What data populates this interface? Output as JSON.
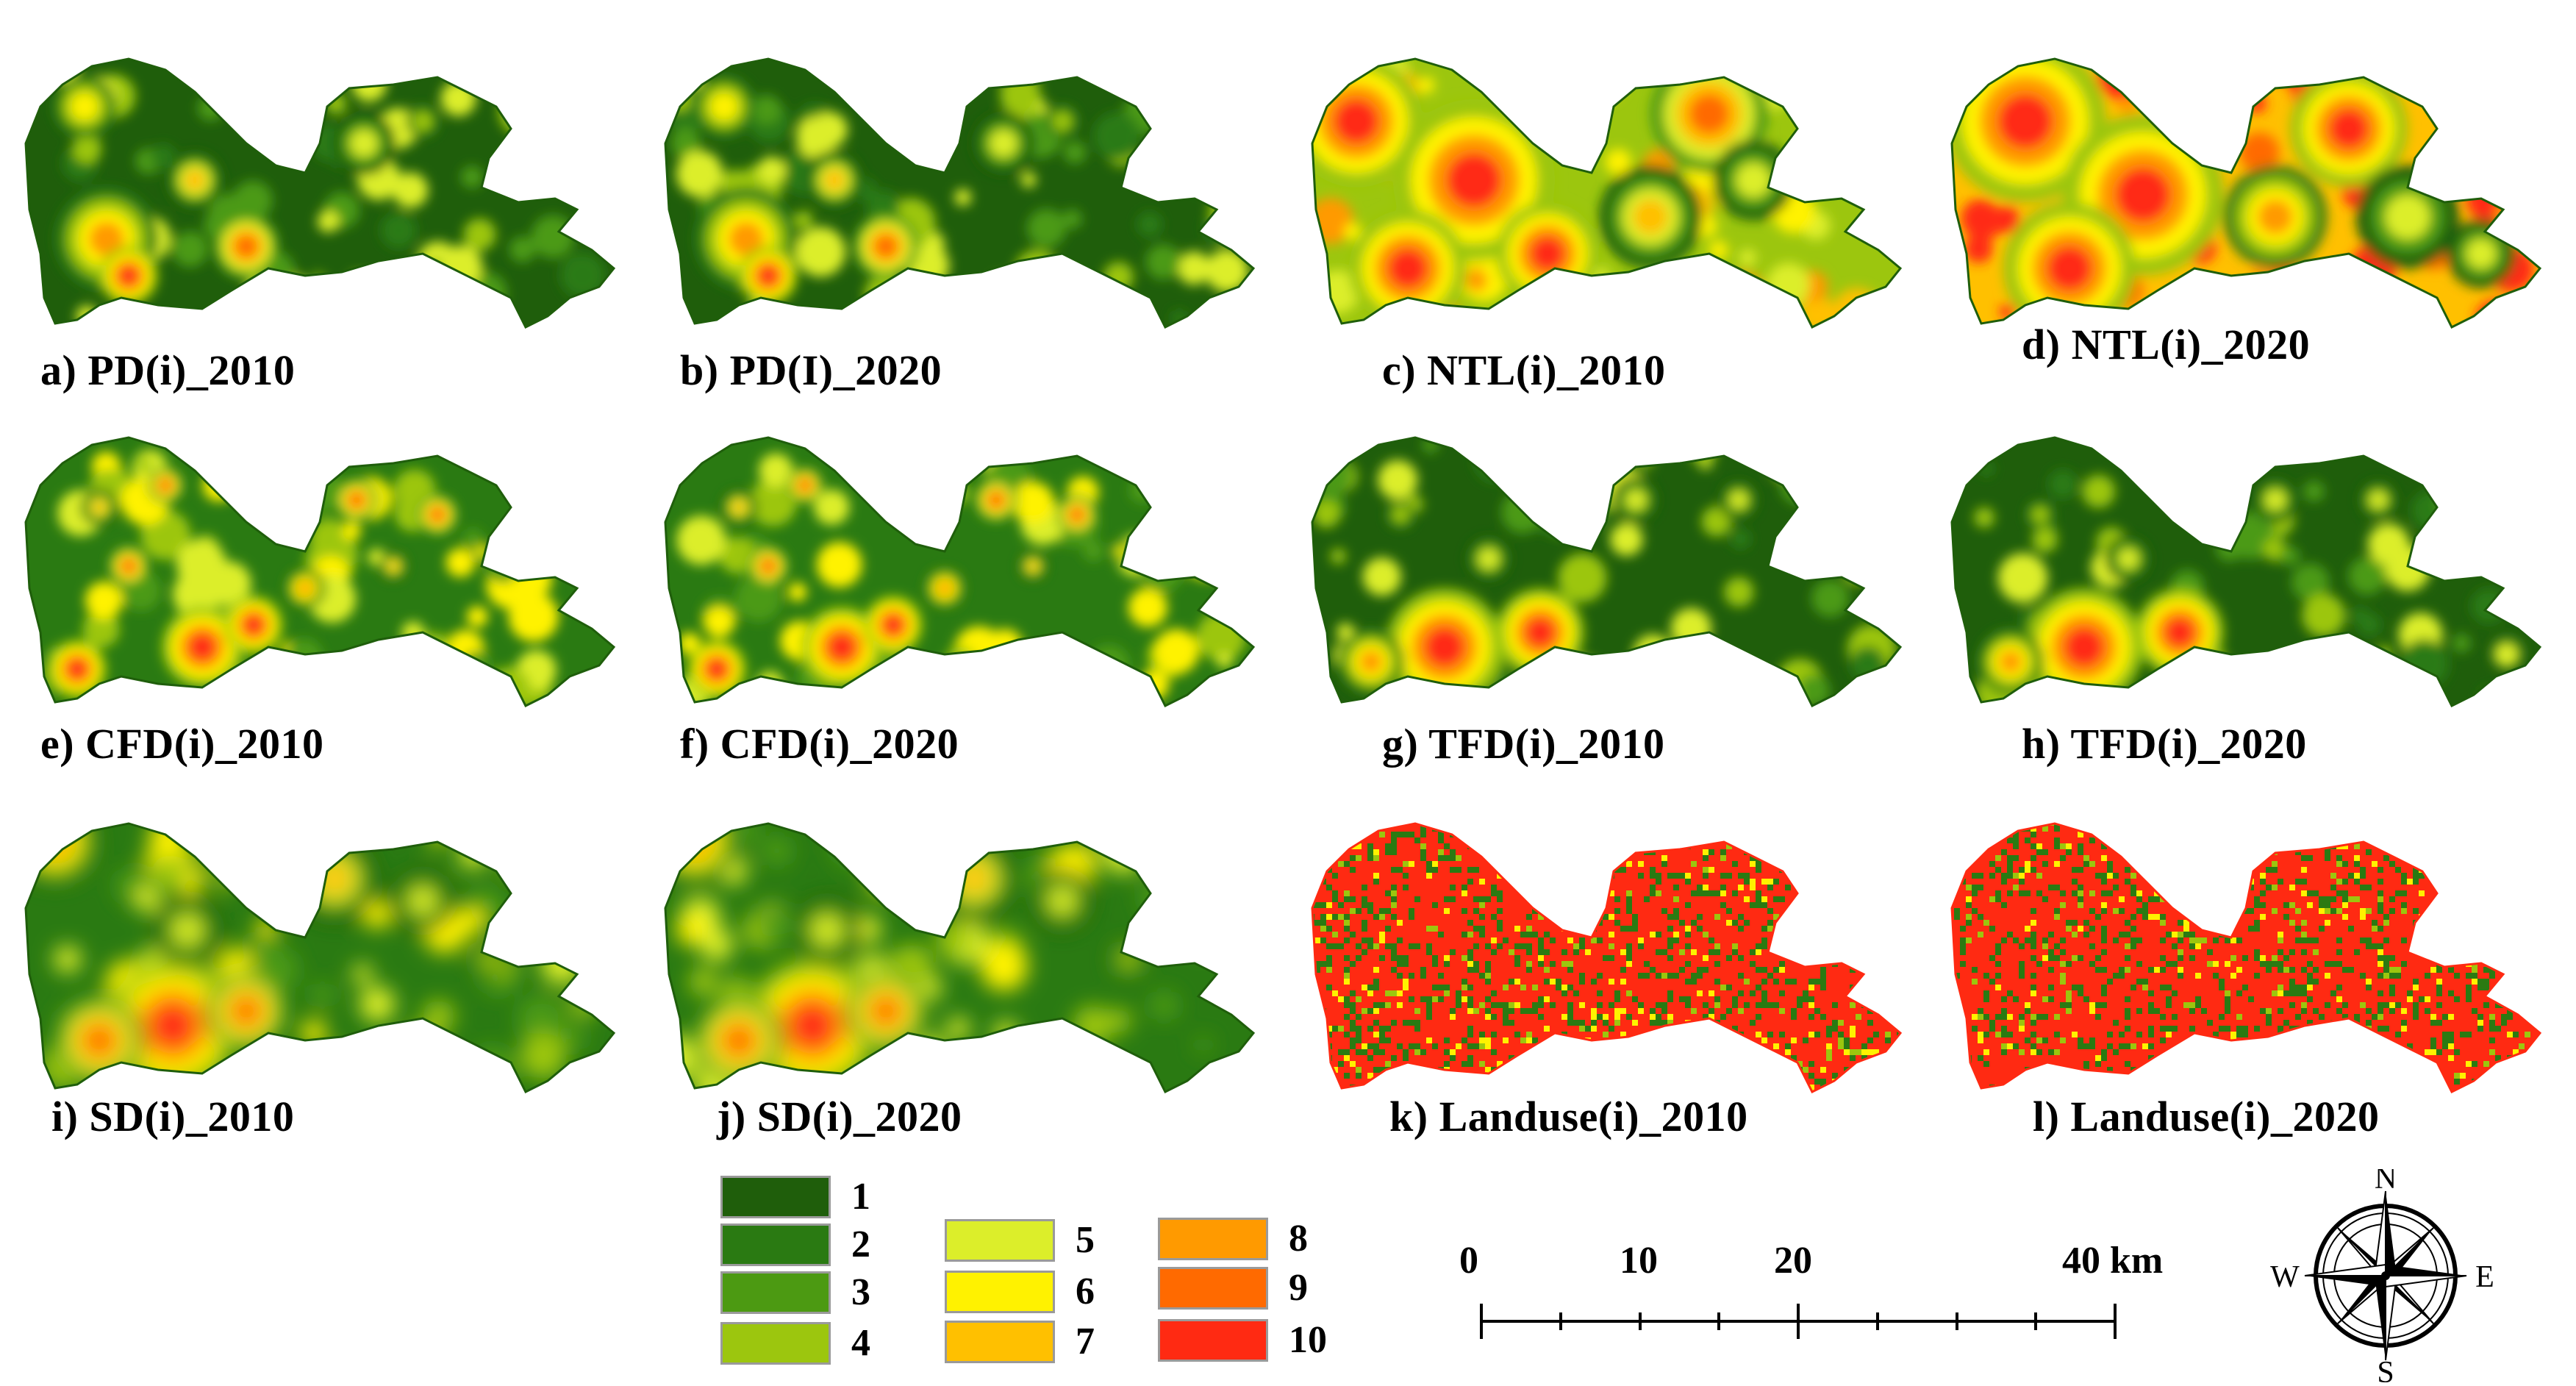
{
  "panels": [
    {
      "caption": "a) PD(i)_2010",
      "theme": "low"
    },
    {
      "caption": "b) PD(I)_2020",
      "theme": "low"
    },
    {
      "caption": "c) NTL(i)_2010",
      "theme": "high"
    },
    {
      "caption": "d) NTL(i)_2020",
      "theme": "veryhigh"
    },
    {
      "caption": "e) CFD(i)_2010",
      "theme": "spots"
    },
    {
      "caption": "f) CFD(i)_2020",
      "theme": "spots"
    },
    {
      "caption": "g) TFD(i)_2010",
      "theme": "southcoast"
    },
    {
      "caption": "h) TFD(i)_2020",
      "theme": "southcoast"
    },
    {
      "caption": "i) SD(i)_2010",
      "theme": "smooth"
    },
    {
      "caption": "j) SD(i)_2020",
      "theme": "smooth"
    },
    {
      "caption": "k) Landuse(i)_2010",
      "theme": "landuse"
    },
    {
      "caption": "l) Landuse(i)_2020",
      "theme": "landuse"
    }
  ],
  "legend": [
    {
      "label": "1",
      "color": "#1f5e0b"
    },
    {
      "label": "2",
      "color": "#2a7a12"
    },
    {
      "label": "3",
      "color": "#4c9a12"
    },
    {
      "label": "4",
      "color": "#9cc60e"
    },
    {
      "label": "5",
      "color": "#dcee2a"
    },
    {
      "label": "6",
      "color": "#fff200"
    },
    {
      "label": "7",
      "color": "#ffc000"
    },
    {
      "label": "8",
      "color": "#ff9a00"
    },
    {
      "label": "9",
      "color": "#ff6a00"
    },
    {
      "label": "10",
      "color": "#ff2a12"
    }
  ],
  "scale": {
    "labels": [
      "0",
      "10",
      "20",
      "40 km"
    ]
  },
  "compass": {
    "n": "N",
    "s": "S",
    "e": "E",
    "w": "W"
  }
}
